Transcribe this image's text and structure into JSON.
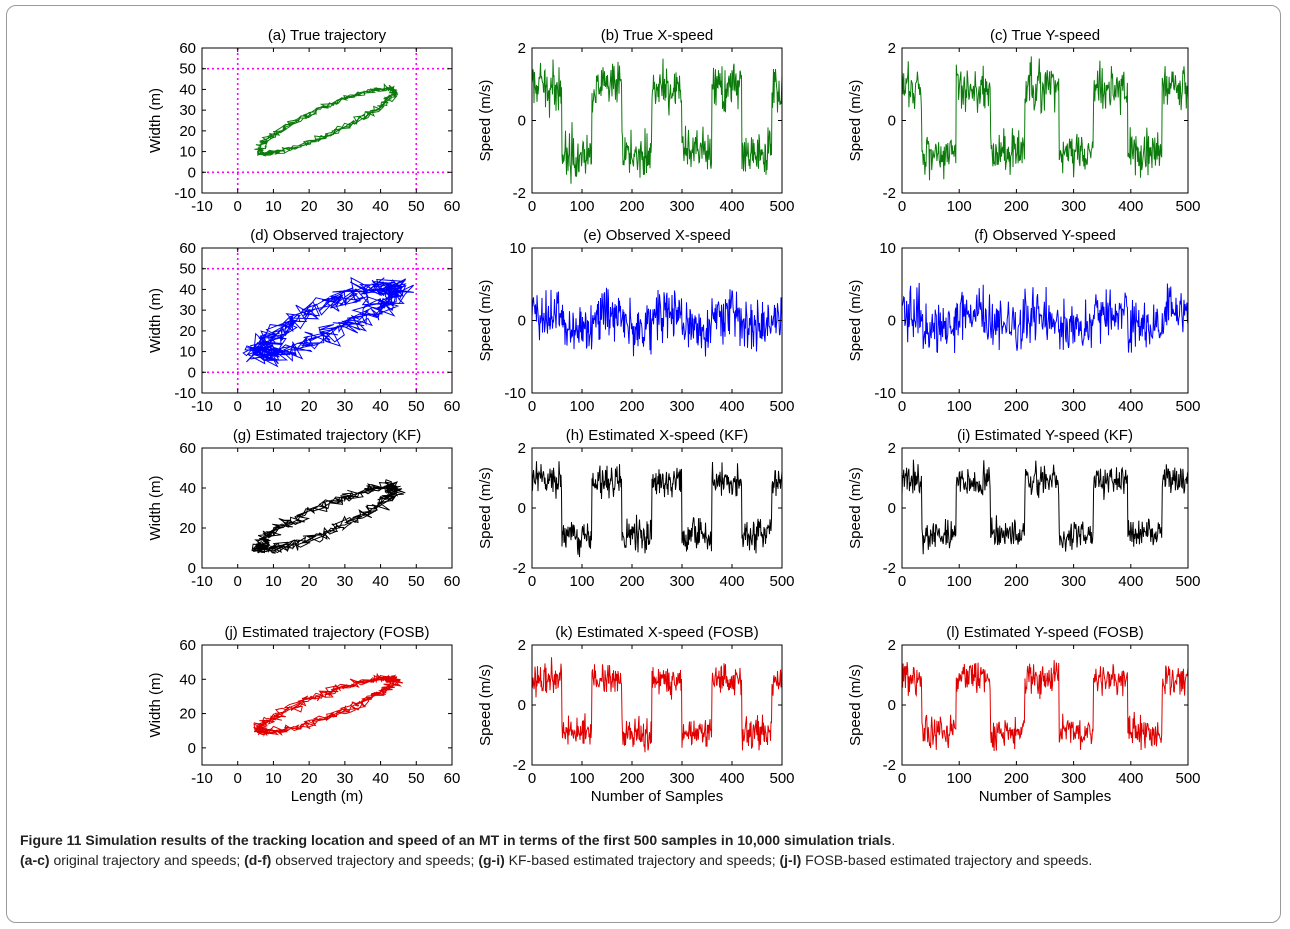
{
  "caption": {
    "title": "Figure 11 Simulation results of the tracking location and speed of an MT in terms of the first 500 samples in 10,000 simulation trials",
    "period": ".",
    "p1_label": "(a-c)",
    "p1_text": " original trajectory and speeds; ",
    "p2_label": "(d-f)",
    "p2_text": " observed trajectory and speeds; ",
    "p3_label": "(g-i)",
    "p3_text": " KF-based estimated trajectory and speeds; ",
    "p4_label": "(j-l)",
    "p4_text": " FOSB-based estimated trajectory and speeds."
  },
  "chart_data": [
    {
      "id": "a",
      "type": "line",
      "title": "(a)  True trajectory",
      "xlabel": "",
      "ylabel": "Width (m)",
      "xlim": [
        -10,
        60
      ],
      "ylim": [
        -10,
        60
      ],
      "xticks": [
        -10,
        0,
        10,
        20,
        30,
        40,
        50,
        60
      ],
      "yticks": [
        -10,
        0,
        10,
        20,
        30,
        40,
        50,
        60
      ],
      "color": "#0a7a0a",
      "kind": "traj",
      "noise": 1.2,
      "loops": 4,
      "boundary": {
        "color": "#ff00ff",
        "x": [
          0,
          50
        ],
        "y": [
          0,
          50
        ]
      }
    },
    {
      "id": "b",
      "type": "line",
      "title": "(b)  True X-speed",
      "xlabel": "",
      "ylabel": "Speed (m/s)",
      "xlim": [
        0,
        500
      ],
      "ylim": [
        -2,
        2
      ],
      "xticks": [
        0,
        100,
        200,
        300,
        400,
        500
      ],
      "yticks": [
        -2,
        0,
        2
      ],
      "color": "#0a7a0a",
      "kind": "speed",
      "phase": 0,
      "amp": 0.9,
      "noise": 0.55
    },
    {
      "id": "c",
      "type": "line",
      "title": "(c)  True Y-speed",
      "xlabel": "",
      "ylabel": "Speed (m/s)",
      "xlim": [
        0,
        500
      ],
      "ylim": [
        -2,
        2
      ],
      "xticks": [
        0,
        100,
        200,
        300,
        400,
        500
      ],
      "yticks": [
        -2,
        0,
        2
      ],
      "color": "#0a7a0a",
      "kind": "speed",
      "phase": 25,
      "amp": 0.9,
      "noise": 0.55
    },
    {
      "id": "d",
      "type": "line",
      "title": "(d)  Observed trajectory",
      "xlabel": "",
      "ylabel": "Width (m)",
      "xlim": [
        -10,
        60
      ],
      "ylim": [
        -10,
        60
      ],
      "xticks": [
        -10,
        0,
        10,
        20,
        30,
        40,
        50,
        60
      ],
      "yticks": [
        -10,
        0,
        10,
        20,
        30,
        40,
        50,
        60
      ],
      "color": "#0000ff",
      "kind": "traj",
      "noise": 4.5,
      "loops": 4,
      "boundary": {
        "color": "#ff00ff",
        "x": [
          0,
          50
        ],
        "y": [
          0,
          50
        ]
      }
    },
    {
      "id": "e",
      "type": "line",
      "title": "(e)  Observed X-speed",
      "xlabel": "",
      "ylabel": "Speed (m/s)",
      "xlim": [
        0,
        500
      ],
      "ylim": [
        -10,
        10
      ],
      "xticks": [
        0,
        100,
        200,
        300,
        400,
        500
      ],
      "yticks": [
        -10,
        0,
        10
      ],
      "color": "#0000ff",
      "kind": "speed",
      "phase": 0,
      "amp": 0.9,
      "noise": 3.0
    },
    {
      "id": "f",
      "type": "line",
      "title": "(f)  Observed Y-speed",
      "xlabel": "",
      "ylabel": "Speed (m/s)",
      "xlim": [
        0,
        500
      ],
      "ylim": [
        -10,
        10
      ],
      "xticks": [
        0,
        100,
        200,
        300,
        400,
        500
      ],
      "yticks": [
        -10,
        0,
        10
      ],
      "color": "#0000ff",
      "kind": "speed",
      "phase": 25,
      "amp": 0.9,
      "noise": 3.0
    },
    {
      "id": "g",
      "type": "line",
      "title": "(g)  Estimated trajectory (KF)",
      "xlabel": "",
      "ylabel": "Width (m)",
      "xlim": [
        -10,
        60
      ],
      "ylim": [
        0,
        60
      ],
      "xticks": [
        -10,
        0,
        10,
        20,
        30,
        40,
        50,
        60
      ],
      "yticks": [
        0,
        20,
        40,
        60
      ],
      "color": "#000000",
      "kind": "traj",
      "noise": 2.2,
      "loops": 4
    },
    {
      "id": "h",
      "type": "line",
      "title": "(h)  Estimated X-speed (KF)",
      "xlabel": "",
      "ylabel": "Speed (m/s)",
      "xlim": [
        0,
        500
      ],
      "ylim": [
        -2,
        2
      ],
      "xticks": [
        0,
        100,
        200,
        300,
        400,
        500
      ],
      "yticks": [
        -2,
        0,
        2
      ],
      "color": "#000000",
      "kind": "speed",
      "phase": 0,
      "amp": 0.9,
      "noise": 0.45
    },
    {
      "id": "i",
      "type": "line",
      "title": "(i)  Estimated Y-speed (KF)",
      "xlabel": "",
      "ylabel": "Speed (m/s)",
      "xlim": [
        0,
        500
      ],
      "ylim": [
        -2,
        2
      ],
      "xticks": [
        0,
        100,
        200,
        300,
        400,
        500
      ],
      "yticks": [
        -2,
        0,
        2
      ],
      "color": "#000000",
      "kind": "speed",
      "phase": 25,
      "amp": 0.9,
      "noise": 0.45
    },
    {
      "id": "j",
      "type": "line",
      "title": "(j)  Estimated trajectory (FOSB)",
      "xlabel": "Length (m)",
      "ylabel": "Width (m)",
      "xlim": [
        -10,
        60
      ],
      "ylim": [
        -10,
        60
      ],
      "xticks": [
        -10,
        0,
        10,
        20,
        30,
        40,
        50,
        60
      ],
      "yticks": [
        0,
        20,
        40,
        60
      ],
      "color": "#e00000",
      "kind": "traj",
      "noise": 2.0,
      "loops": 4
    },
    {
      "id": "k",
      "type": "line",
      "title": "(k)  Estimated X-speed (FOSB)",
      "xlabel": "Number of Samples",
      "ylabel": "Speed (m/s)",
      "xlim": [
        0,
        500
      ],
      "ylim": [
        -2,
        2
      ],
      "xticks": [
        0,
        100,
        200,
        300,
        400,
        500
      ],
      "yticks": [
        -2,
        0,
        2
      ],
      "color": "#e00000",
      "kind": "speed",
      "phase": 0,
      "amp": 0.9,
      "noise": 0.45
    },
    {
      "id": "l",
      "type": "line",
      "title": "(l)  Estimated Y-speed (FOSB)",
      "xlabel": "Number of Samples",
      "ylabel": "Speed (m/s)",
      "xlim": [
        0,
        500
      ],
      "ylim": [
        -2,
        2
      ],
      "xticks": [
        0,
        100,
        200,
        300,
        400,
        500
      ],
      "yticks": [
        -2,
        0,
        2
      ],
      "color": "#e00000",
      "kind": "speed",
      "phase": 25,
      "amp": 0.9,
      "noise": 0.45
    }
  ]
}
